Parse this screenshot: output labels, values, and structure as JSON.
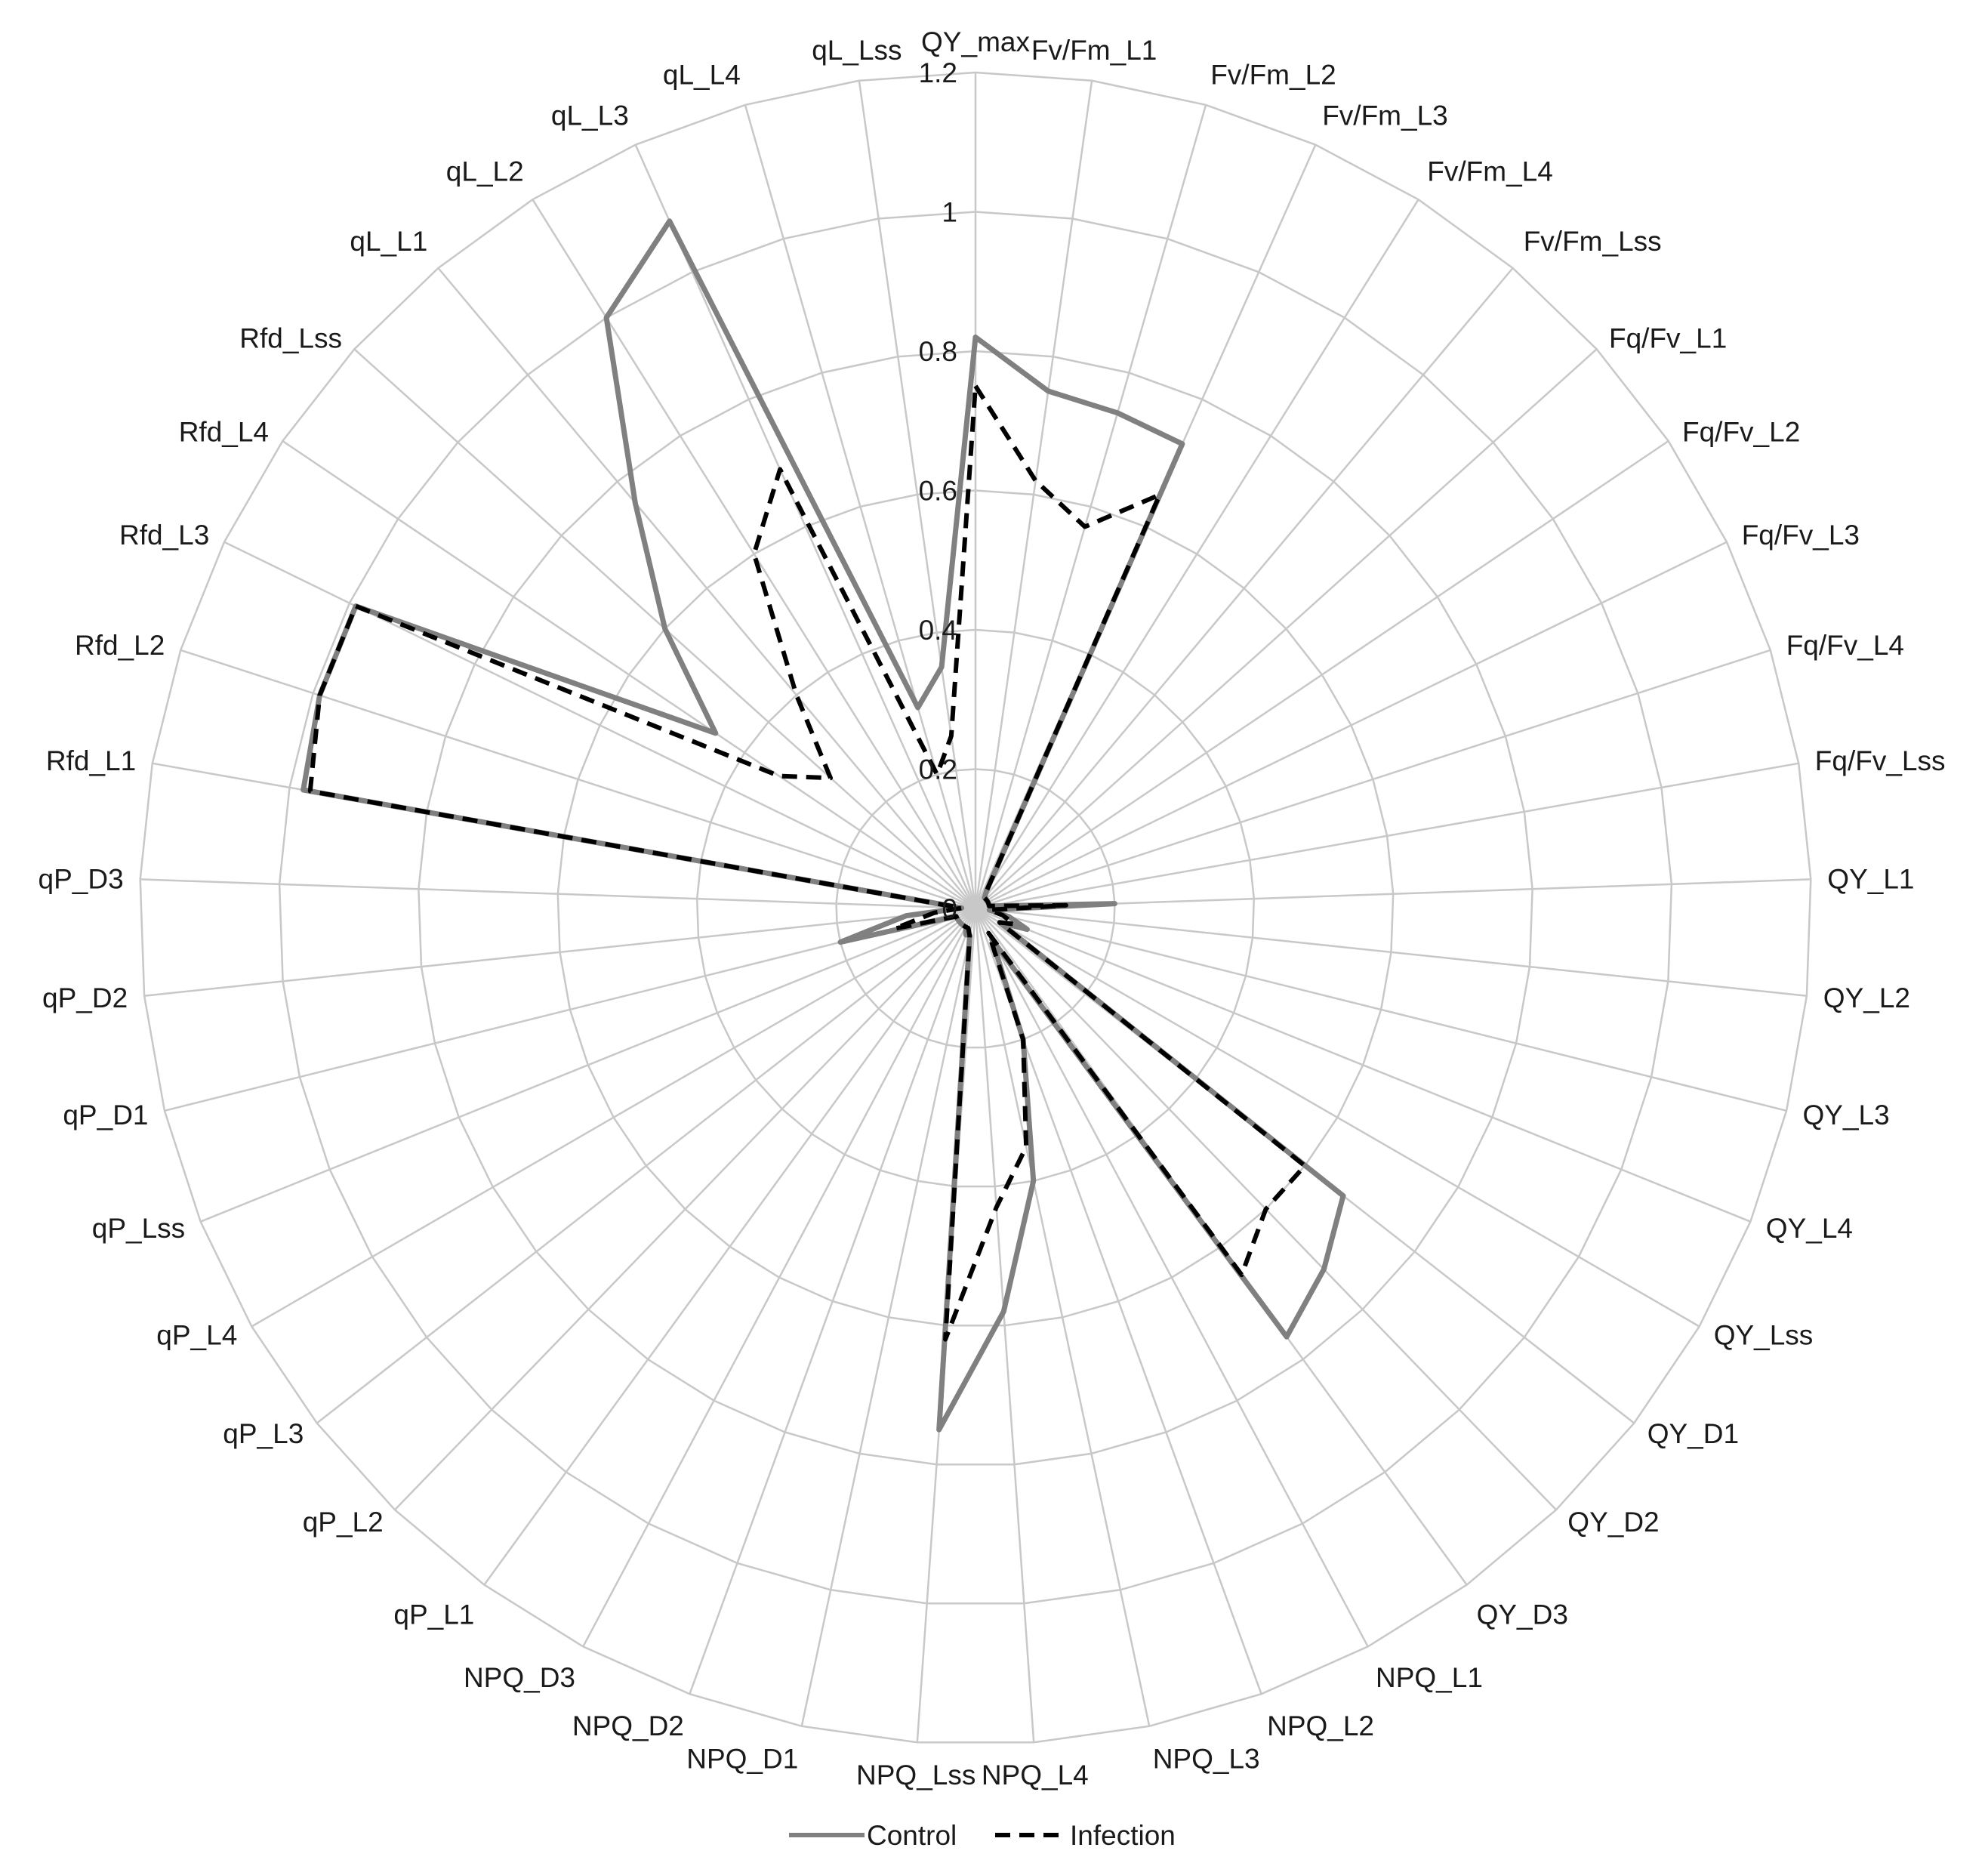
{
  "chart_data": {
    "type": "radar",
    "ticks": [
      "0",
      "0.2",
      "0.4",
      "0.6",
      "0.8",
      "1",
      "1.2"
    ],
    "rmax": 1.2,
    "categories": [
      "QY_max",
      "Fv/Fm_L1",
      "Fv/Fm_L2",
      "Fv/Fm_L3",
      "Fv/Fm_L4",
      "Fv/Fm_Lss",
      "Fq/Fv_L1",
      "Fq/Fv_L2",
      "Fq/Fv_L3",
      "Fq/Fv_L4",
      "Fq/Fv_Lss",
      "QY_L1",
      "QY_L2",
      "QY_L3",
      "QY_L4",
      "QY_Lss",
      "QY_D1",
      "QY_D2",
      "QY_D3",
      "NPQ_L1",
      "NPQ_L2",
      "NPQ_L3",
      "NPQ_L4",
      "NPQ_Lss",
      "NPQ_D1",
      "NPQ_D2",
      "NPQ_D3",
      "qP_L1",
      "qP_L2",
      "qP_L3",
      "qP_L4",
      "qP_Lss",
      "qP_D1",
      "qP_D2",
      "qP_D3",
      "Rfd_L1",
      "Rfd_L2",
      "Rfd_L3",
      "Rfd_L4",
      "Rfd_Lss",
      "qL_L1",
      "qL_L2",
      "qL_L3",
      "qL_L4",
      "qL_Lss"
    ],
    "series": [
      {
        "name": "Control",
        "color": "#808080",
        "dash": "solid",
        "values": [
          0.82,
          0.75,
          0.74,
          0.73,
          0.03,
          0.02,
          0.02,
          0.02,
          0.02,
          0.02,
          0.02,
          0.2,
          0.02,
          0.05,
          0.08,
          0.04,
          0.67,
          0.72,
          0.76,
          0.05,
          0.2,
          0.4,
          0.58,
          0.75,
          0.04,
          0.04,
          0.03,
          0.03,
          0.03,
          0.03,
          0.03,
          0.03,
          0.2,
          0.1,
          0.02,
          0.98,
          0.99,
          0.99,
          0.45,
          0.6,
          0.76,
          1.0,
          1.08,
          0.3,
          0.35
        ]
      },
      {
        "name": "Infection",
        "color": "#000000",
        "dash": "dashed",
        "values": [
          0.75,
          0.62,
          0.57,
          0.65,
          0.03,
          0.02,
          0.02,
          0.02,
          0.02,
          0.02,
          0.02,
          0.13,
          0.02,
          0.04,
          0.06,
          0.04,
          0.6,
          0.6,
          0.65,
          0.04,
          0.2,
          0.35,
          0.43,
          0.62,
          0.04,
          0.03,
          0.03,
          0.03,
          0.03,
          0.03,
          0.03,
          0.03,
          0.12,
          0.06,
          0.02,
          0.97,
          0.99,
          0.99,
          0.34,
          0.28,
          0.4,
          0.6,
          0.69,
          0.2,
          0.25
        ]
      }
    ]
  },
  "legend": {
    "items": [
      {
        "label": "Control",
        "color": "#808080",
        "dash": "solid"
      },
      {
        "label": "Infection",
        "color": "#000000",
        "dash": "dashed"
      }
    ]
  }
}
